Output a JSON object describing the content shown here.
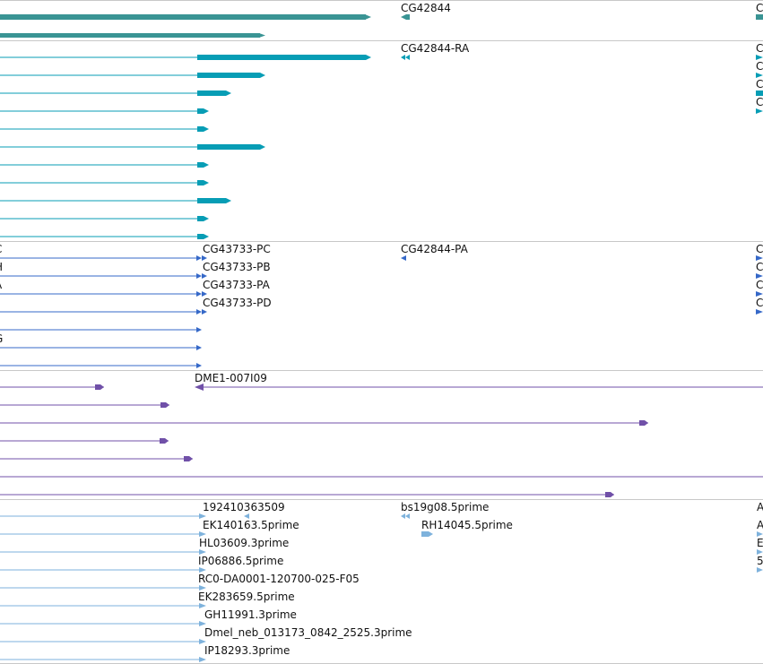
{
  "colors": {
    "background": "#ffffff",
    "separator": "#c8c8c8",
    "gene": "#3a9494",
    "mrna": "#079db5",
    "cds": "#3568c8",
    "clone": "#7050a8",
    "est": "#7eb2dc",
    "label": "#111111"
  },
  "icon_names": {
    "feature_glyph": "arrow-glyph-icon"
  },
  "tracks": {
    "genes": {
      "labels": [
        "CG42844",
        "C"
      ]
    },
    "transcripts": {
      "labels": [
        "CG42844-RA",
        "C",
        "C",
        "C",
        "C"
      ]
    },
    "cds": {
      "labels": [
        "C",
        "CG43733-PC",
        "CG42844-PA",
        "C",
        "H",
        "CG43733-PB",
        "C",
        "A",
        "CG43733-PA",
        "C",
        "CG43733-PD",
        "C",
        "G"
      ]
    },
    "clones": {
      "labels": [
        "DME1-007I09"
      ]
    },
    "ests": {
      "labels": [
        "192410363509",
        "bs19g08.5prime",
        "A",
        "EK140163.5prime",
        "RH14045.5prime",
        "A",
        "HL03609.3prime",
        "E",
        "IP06886.5prime",
        "5",
        "RC0-DA0001-120700-025-F05",
        "EK283659.5prime",
        "GH11991.3prime",
        "Dmel_neb_013173_0842_2525.3prime",
        "IP18293.3prime"
      ]
    }
  }
}
